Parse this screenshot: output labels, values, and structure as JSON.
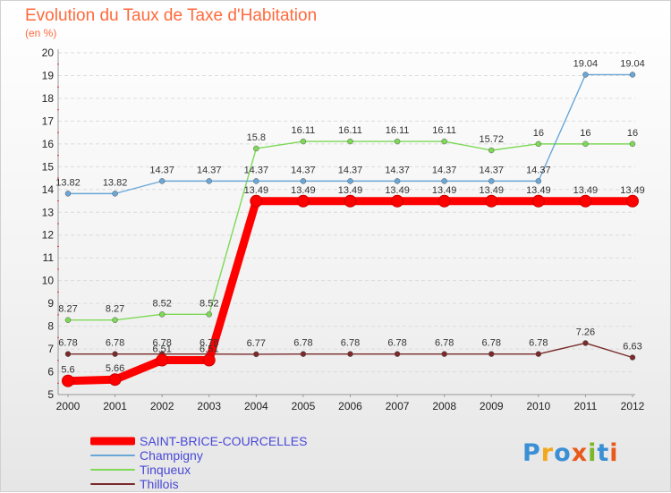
{
  "header": {
    "title": "Evolution du Taux de Taxe d'Habitation",
    "subtitle": "(en %)"
  },
  "logo": {
    "text": "Proxiti",
    "colors": [
      "#3b8fd4",
      "#f2a81d",
      "#3b8fd4",
      "#e85a1c",
      "#7ab829",
      "#3b8fd4",
      "#e85a1c"
    ]
  },
  "chart_data": {
    "type": "line",
    "title": "Evolution du Taux de Taxe d'Habitation",
    "ylabel": "(en %)",
    "xlabel": "",
    "x": [
      "2000",
      "2001",
      "2002",
      "2003",
      "2004",
      "2005",
      "2006",
      "2007",
      "2008",
      "2009",
      "2010",
      "2011",
      "2012"
    ],
    "ylim": [
      5,
      20
    ],
    "yticks": [
      5,
      6,
      7,
      8,
      9,
      10,
      11,
      12,
      13,
      14,
      15,
      16,
      17,
      18,
      19,
      20
    ],
    "grid": "horizontal",
    "legend": "bottom",
    "series": [
      {
        "name": "Thillois",
        "color": "#7a2a2a",
        "emphasis": false,
        "values": [
          6.78,
          6.78,
          6.78,
          6.78,
          6.77,
          6.78,
          6.78,
          6.78,
          6.78,
          6.78,
          6.78,
          7.26,
          6.63
        ],
        "labels": [
          "6.78",
          "6.78",
          "6.78",
          "6.78",
          "6.77",
          "6.78",
          "6.78",
          "6.78",
          "6.78",
          "6.78",
          "6.78",
          "7.26",
          "6.63"
        ]
      },
      {
        "name": "Tinqueux",
        "color": "#7ed957",
        "emphasis": false,
        "values": [
          8.27,
          8.27,
          8.52,
          8.52,
          15.8,
          16.11,
          16.11,
          16.11,
          16.11,
          15.72,
          16,
          16,
          16
        ],
        "labels": [
          "8.27",
          "8.27",
          "8.52",
          "8.52",
          "15.8",
          "16.11",
          "16.11",
          "16.11",
          "16.11",
          "15.72",
          "16",
          "16",
          "16"
        ]
      },
      {
        "name": "Champigny",
        "color": "#6aa6d6",
        "emphasis": false,
        "values": [
          13.82,
          13.82,
          14.37,
          14.37,
          14.37,
          14.37,
          14.37,
          14.37,
          14.37,
          14.37,
          14.37,
          19.04,
          19.04
        ],
        "labels": [
          "13.82",
          "13.82",
          "14.37",
          "14.37",
          "14.37",
          "14.37",
          "14.37",
          "14.37",
          "14.37",
          "14.37",
          "14.37",
          "19.04",
          "19.04"
        ]
      },
      {
        "name": "SAINT-BRICE-COURCELLES",
        "color": "#ff0000",
        "emphasis": true,
        "values": [
          5.6,
          5.66,
          6.51,
          6.51,
          13.49,
          13.49,
          13.49,
          13.49,
          13.49,
          13.49,
          13.49,
          13.49,
          13.49
        ],
        "labels": [
          "5.6",
          "5.66",
          "6.51",
          "6.51",
          "13.49",
          "13.49",
          "13.49",
          "13.49",
          "13.49",
          "13.49",
          "13.49",
          "13.49",
          "13.49"
        ]
      }
    ],
    "legend_order": [
      "SAINT-BRICE-COURCELLES",
      "Champigny",
      "Tinqueux",
      "Thillois"
    ],
    "legend_label_color": "#4848d8"
  }
}
